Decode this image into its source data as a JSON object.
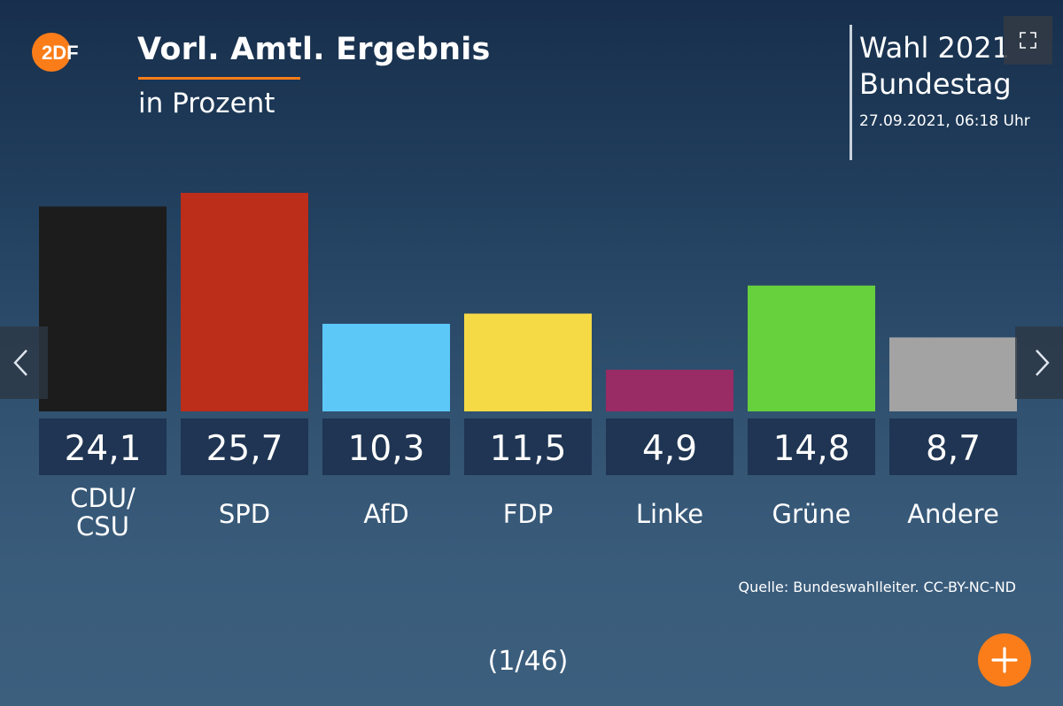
{
  "header": {
    "logo_text": "2DF",
    "title": "Vorl. Amtl. Ergebnis",
    "subtitle": "in Prozent"
  },
  "election": {
    "line1": "Wahl 2021",
    "line2": "Bundestag",
    "date": "27.09.2021, 06:18 Uhr"
  },
  "chart_data": {
    "type": "bar",
    "title": "Vorl. Amtl. Ergebnis",
    "subtitle": "in Prozent",
    "unit": "Prozent",
    "categories": [
      [
        "CDU/",
        "CSU"
      ],
      [
        "SPD"
      ],
      [
        "AfD"
      ],
      [
        "FDP"
      ],
      [
        "Linke"
      ],
      [
        "Grüne"
      ],
      [
        "Andere"
      ]
    ],
    "values": [
      24.1,
      25.7,
      10.3,
      11.5,
      4.9,
      14.8,
      8.7
    ],
    "value_labels": [
      "24,1",
      "25,7",
      "10,3",
      "11,5",
      "4,9",
      "14,8",
      "8,7"
    ],
    "colors": [
      "#1c1c1c",
      "#bc2d1a",
      "#5cc8f8",
      "#f6da45",
      "#9a2c65",
      "#67d03d",
      "#a3a3a3"
    ],
    "ylim": [
      0,
      25.7
    ],
    "grid": false,
    "legend": "none"
  },
  "footer": {
    "source": "Quelle: Bundeswahlleiter. CC-BY-NC-ND",
    "page_counter": "(1/46)"
  },
  "controls": {
    "fullscreen_icon": "fullscreen-icon",
    "prev_icon": "chevron-left-icon",
    "next_icon": "chevron-right-icon",
    "add_icon": "plus-icon"
  }
}
